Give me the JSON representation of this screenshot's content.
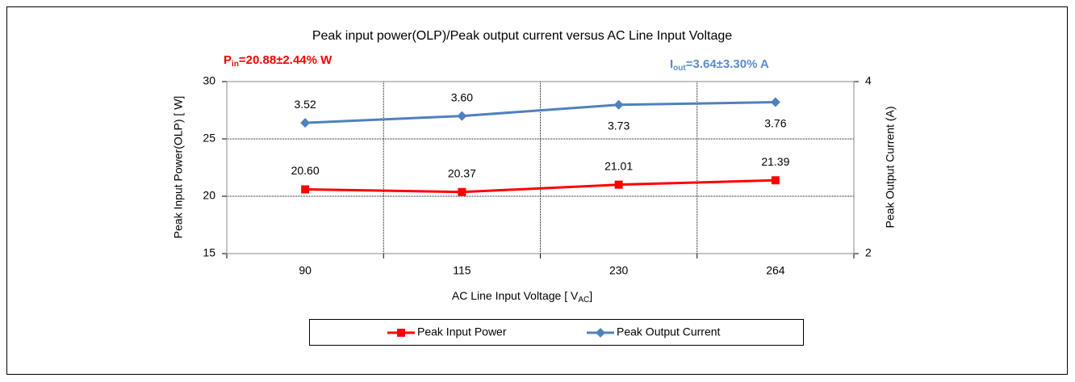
{
  "chart_data": {
    "type": "line",
    "title": "Peak input power(OLP)/Peak  output current versus AC Line Input Voltage",
    "annotations": [
      {
        "main": "P",
        "sub": "in",
        "rest": "=20.88±2.44%  W",
        "color": "#ff0000"
      },
      {
        "main": "I",
        "sub": "out",
        "rest": "=3.64±3.30%  A",
        "color": "#5b8bd0"
      }
    ],
    "x_label": {
      "main": "AC Line Input Voltage [ V",
      "sub": "AC",
      "rest": "]"
    },
    "y_label": "Peak Input Power(OLP) [ W]",
    "y2_label": "Peak Output Current (A)",
    "categories": [
      "90",
      "115",
      "230",
      "264"
    ],
    "series": [
      {
        "name": "Peak Input Power",
        "color": "#ff0000",
        "marker": "square",
        "values": [
          20.6,
          20.37,
          21.01,
          21.39
        ],
        "value_labels": [
          "20.60",
          "20.37",
          "21.01",
          "21.39"
        ]
      },
      {
        "name": "Peak Output Current",
        "color": "#4f81bd",
        "marker": "diamond",
        "axis": "y2",
        "values": [
          3.52,
          3.6,
          3.73,
          3.76
        ],
        "value_labels": [
          "3.52",
          "3.60",
          "3.73",
          "3.76"
        ]
      }
    ],
    "ylim": [
      15,
      30
    ],
    "yticks": [
      15,
      20,
      25,
      30
    ],
    "y2lim": [
      2,
      4
    ],
    "y2ticks": [
      2,
      4
    ],
    "grid": true,
    "legend": "bottom"
  }
}
